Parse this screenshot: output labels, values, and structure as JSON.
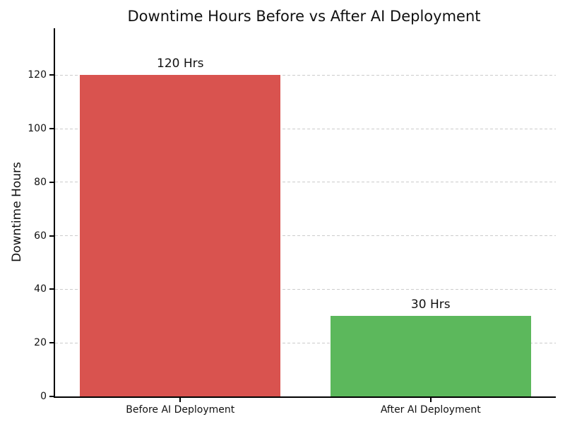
{
  "chart_data": {
    "type": "bar",
    "title": "Downtime Hours Before vs After AI Deployment",
    "categories": [
      "Before AI Deployment",
      "After AI Deployment"
    ],
    "values": [
      120,
      30
    ],
    "bar_labels": [
      "120 Hrs",
      "30 Hrs"
    ],
    "bar_colors": [
      "#d9534f",
      "#5cb85c"
    ],
    "xlabel": "",
    "ylabel": "Downtime Hours",
    "ylim": [
      0,
      137.5
    ],
    "yticks": [
      0,
      20,
      40,
      60,
      80,
      100,
      120
    ],
    "grid": {
      "axis": "y",
      "style": "dashed",
      "color": "#cccccc"
    },
    "legend_position": "none",
    "background_color": "#ffffff",
    "title_color": "#111111",
    "bar_width_fraction": 0.8
  }
}
